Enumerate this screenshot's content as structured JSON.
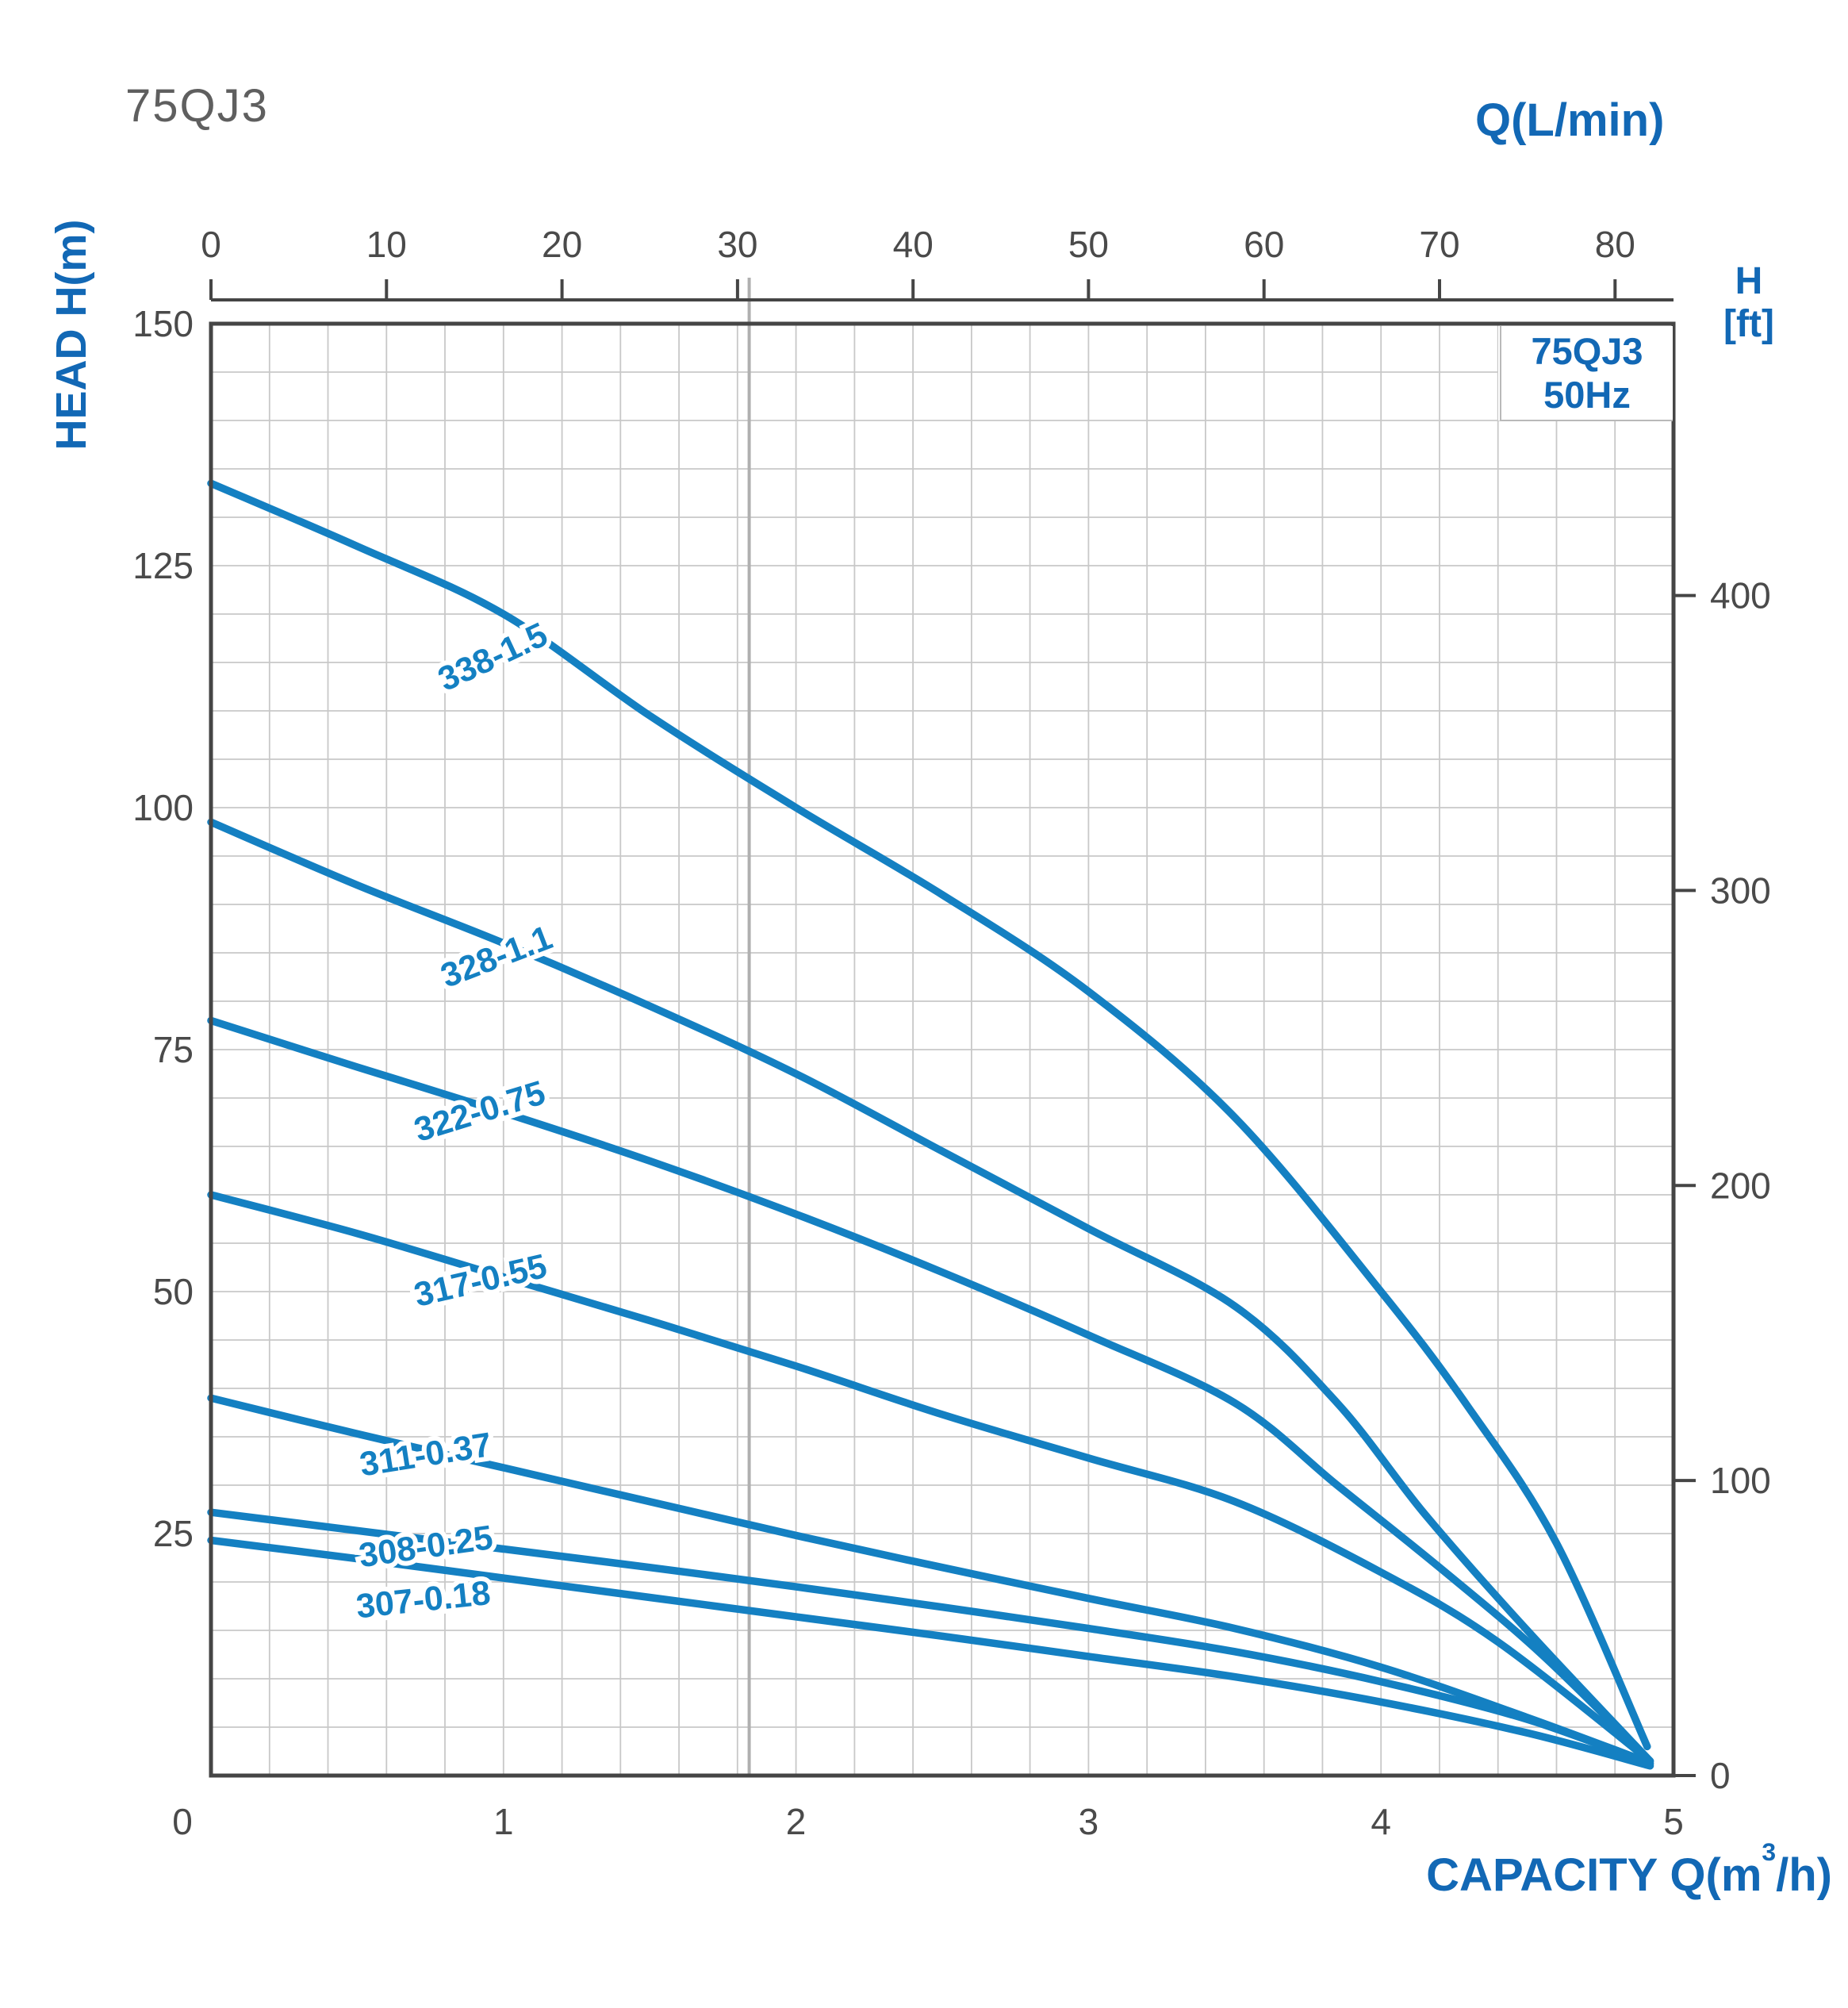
{
  "title": "75QJ3",
  "top_axis": {
    "title": "Q(L/min)",
    "tick_labels": [
      "0",
      "10",
      "20",
      "30",
      "40",
      "50",
      "60",
      "70",
      "80"
    ]
  },
  "bottom_axis": {
    "title_prefix": "CAPACITY Q(m",
    "title_sup": "3",
    "title_suffix": "/h)",
    "tick_labels": [
      "0",
      "1",
      "2",
      "3",
      "4",
      "5"
    ]
  },
  "left_axis": {
    "title": "HEAD H(m)",
    "tick_labels": [
      "150",
      "125",
      "100",
      "75",
      "50",
      "25"
    ]
  },
  "right_axis": {
    "title_line1": "H",
    "title_line2": "[ft]",
    "tick_labels": [
      "400",
      "300",
      "200",
      "100",
      "0"
    ]
  },
  "legend": {
    "line1": "75QJ3",
    "line2": "50Hz"
  },
  "colors": {
    "curve_blue": "#1480c2",
    "label_blue": "#1268b5",
    "axis_dark": "#454545",
    "tick_text": "#4a4a4a",
    "grid": "#c8c8c8",
    "reference_line": "#b0b0b0",
    "title_gray": "#5f5f5f",
    "legend_border": "#b9b9b9"
  },
  "chart_data": {
    "type": "line",
    "title": "75QJ3",
    "frequency": "50Hz",
    "xlabel": "CAPACITY Q(m³/h)",
    "xlabel_secondary": "Q(L/min)",
    "ylabel": "HEAD H(m)",
    "ylabel_secondary": "H [ft]",
    "xlim": [
      0,
      5
    ],
    "ylim": [
      0,
      150
    ],
    "x_secondary_lim": [
      0,
      83.33
    ],
    "x_ticks": [
      0,
      1,
      2,
      3,
      4,
      5
    ],
    "y_ticks": [
      0,
      25,
      50,
      75,
      100,
      125,
      150
    ],
    "x_secondary_ticks": [
      0,
      10,
      20,
      30,
      40,
      50,
      60,
      70,
      80
    ],
    "y_secondary_ticks_ft": [
      400,
      300,
      200,
      100,
      0
    ],
    "grid": {
      "x_step": 0.2,
      "y_step": 5,
      "on": true
    },
    "legend_position": "top-right",
    "reference_line_x": 1.84,
    "series": [
      {
        "name": "338-1.5",
        "points": [
          [
            0,
            133.5
          ],
          [
            0.5,
            127
          ],
          [
            1,
            120
          ],
          [
            1.5,
            109.5
          ],
          [
            2,
            100
          ],
          [
            2.5,
            91
          ],
          [
            3,
            81
          ],
          [
            3.5,
            68
          ],
          [
            4,
            50
          ],
          [
            4.3,
            38
          ],
          [
            4.6,
            24
          ],
          [
            4.91,
            3
          ]
        ],
        "label": {
          "x": 0.98,
          "y": 114.5,
          "rot": -25
        }
      },
      {
        "name": "328-1.1",
        "points": [
          [
            0,
            98.5
          ],
          [
            0.5,
            92
          ],
          [
            1,
            86
          ],
          [
            1.5,
            79.5
          ],
          [
            2,
            72.5
          ],
          [
            2.5,
            64.5
          ],
          [
            3,
            56.5
          ],
          [
            3.5,
            48.5
          ],
          [
            3.85,
            38.5
          ],
          [
            4.15,
            27
          ],
          [
            4.5,
            15
          ],
          [
            4.92,
            1.5
          ]
        ],
        "label": {
          "x": 0.99,
          "y": 83.5,
          "rot": -21
        }
      },
      {
        "name": "322-0.75",
        "points": [
          [
            0,
            78
          ],
          [
            0.5,
            73.2
          ],
          [
            1,
            68.5
          ],
          [
            1.5,
            63.5
          ],
          [
            2,
            58
          ],
          [
            2.5,
            52
          ],
          [
            3,
            45.5
          ],
          [
            3.5,
            38.5
          ],
          [
            3.85,
            30
          ],
          [
            4.2,
            21.5
          ],
          [
            4.55,
            12.5
          ],
          [
            4.92,
            1.5
          ]
        ],
        "label": {
          "x": 0.93,
          "y": 67.5,
          "rot": -17
        }
      },
      {
        "name": "317-0.55",
        "points": [
          [
            0,
            60
          ],
          [
            0.5,
            56
          ],
          [
            1,
            51.5
          ],
          [
            1.5,
            47
          ],
          [
            2,
            42.3
          ],
          [
            2.5,
            37.3
          ],
          [
            3,
            32.8
          ],
          [
            3.5,
            28.3
          ],
          [
            4,
            21
          ],
          [
            4.4,
            13.8
          ],
          [
            4.92,
            1.5
          ]
        ],
        "label": {
          "x": 0.93,
          "y": 50.0,
          "rot": -13
        }
      },
      {
        "name": "311-0.37",
        "points": [
          [
            0,
            39
          ],
          [
            0.5,
            35.3
          ],
          [
            1,
            31.8
          ],
          [
            1.5,
            28.3
          ],
          [
            2,
            24.8
          ],
          [
            2.5,
            21.5
          ],
          [
            3,
            18.3
          ],
          [
            3.5,
            15.2
          ],
          [
            4,
            11.2
          ],
          [
            4.5,
            6
          ],
          [
            4.92,
            1.3
          ]
        ],
        "label": {
          "x": 0.74,
          "y": 32.0,
          "rot": -9
        }
      },
      {
        "name": "308-0.25",
        "points": [
          [
            0,
            27.2
          ],
          [
            0.5,
            25.3
          ],
          [
            1,
            23.4
          ],
          [
            1.5,
            21.5
          ],
          [
            2,
            19.5
          ],
          [
            2.5,
            17.4
          ],
          [
            3,
            15.2
          ],
          [
            3.5,
            12.8
          ],
          [
            4,
            9.7
          ],
          [
            4.5,
            5.8
          ],
          [
            4.92,
            1.2
          ]
        ],
        "label": {
          "x": 0.74,
          "y": 22.5,
          "rot": -8
        }
      },
      {
        "name": "307-0.18",
        "points": [
          [
            0,
            24.3
          ],
          [
            0.5,
            22.4
          ],
          [
            1,
            20.4
          ],
          [
            1.5,
            18.4
          ],
          [
            2,
            16.4
          ],
          [
            2.5,
            14.4
          ],
          [
            3,
            12.3
          ],
          [
            3.5,
            10.2
          ],
          [
            4,
            7.6
          ],
          [
            4.5,
            4.4
          ],
          [
            4.92,
            1.0
          ]
        ],
        "label": {
          "x": 0.73,
          "y": 17.0,
          "rot": -6
        }
      }
    ]
  }
}
